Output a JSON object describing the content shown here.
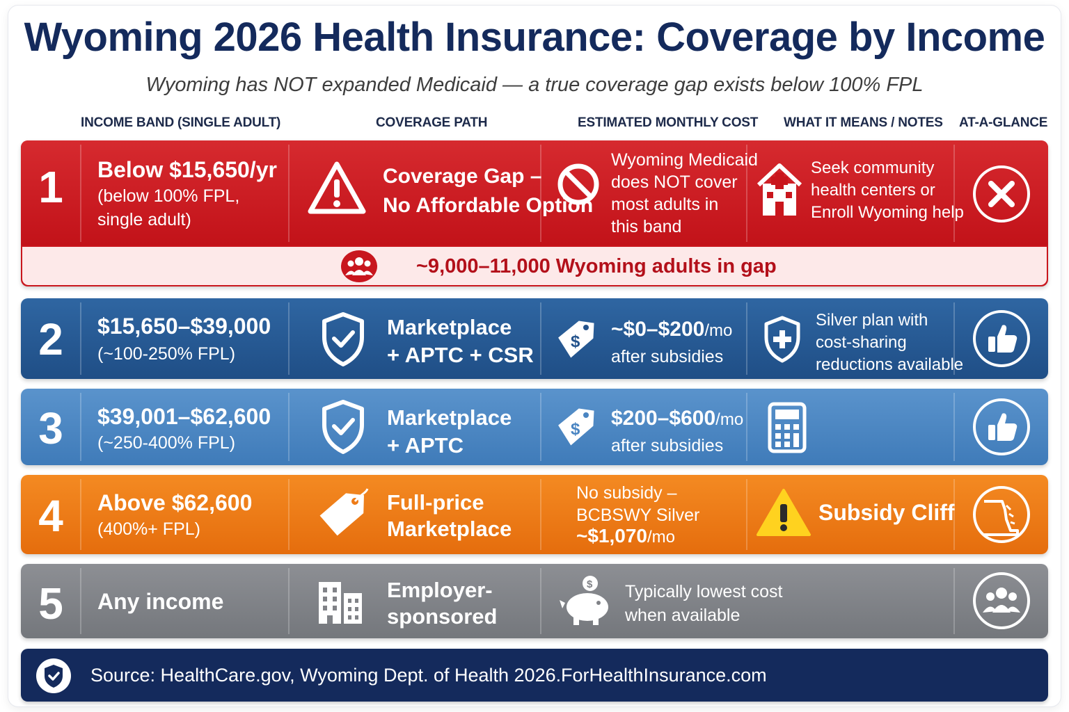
{
  "header": {
    "title": "Wyoming 2026 Health Insurance: Coverage by Income",
    "subtitle": "Wyoming has NOT expanded Medicaid — a true coverage gap exists below 100% FPL"
  },
  "columns": {
    "income": "INCOME BAND (SINGLE ADULT)",
    "path": "COVERAGE PATH",
    "cost": "ESTIMATED MONTHLY COST",
    "notes": "WHAT IT MEANS / NOTES",
    "glance": "AT-A-GLANCE"
  },
  "rows": [
    {
      "number": "1",
      "income_main": "Below $15,650/yr",
      "income_sub_1": "(below 100% FPL,",
      "income_sub_2": "single adult)",
      "path_1": "Coverage Gap –",
      "path_2": "No Affordable Option",
      "cost_1": "Wyoming Medicaid",
      "cost_2": "does NOT cover",
      "cost_3": "most adults in",
      "cost_4": "this band",
      "note_1": "Seek community",
      "note_2": "health centers or",
      "note_3": "Enroll Wyoming help",
      "gap_callout": "~9,000–11,000 Wyoming adults in gap",
      "path_icon": "warning-triangle-icon",
      "cost_icon": "prohibited-icon",
      "note_icon": "hospital-icon",
      "glance_icon": "x-circle-icon",
      "color": "#c9161d"
    },
    {
      "number": "2",
      "income_main": "$15,650–$39,000",
      "income_sub_1": "(~100-250% FPL)",
      "path_1": "Marketplace",
      "path_2": "+ APTC + CSR",
      "cost_big": "~$0–$200",
      "cost_unit": "/mo",
      "cost_sub": "after subsidies",
      "note_1": "Silver plan with",
      "note_2": "cost-sharing",
      "note_3": "reductions available",
      "path_icon": "shield-check-icon",
      "cost_icon": "price-tag-dollar-icon",
      "note_icon": "shield-plus-icon",
      "glance_icon": "thumbs-up-icon",
      "color": "#24538c"
    },
    {
      "number": "3",
      "income_main": "$39,001–$62,600",
      "income_sub_1": "(~250-400% FPL)",
      "path_1": "Marketplace",
      "path_2": "+ APTC",
      "cost_big": "$200–$600",
      "cost_unit": "/mo",
      "cost_sub": "after subsidies",
      "path_icon": "shield-check-icon",
      "cost_icon": "price-tag-dollar-icon",
      "note_icon": "calculator-icon",
      "glance_icon": "thumbs-up-icon",
      "color": "#4a85c2"
    },
    {
      "number": "4",
      "income_main": "Above $62,600",
      "income_sub_1": "(400%+ FPL)",
      "path_1": "Full-price",
      "path_2": "Marketplace",
      "cost_1": "No subsidy –",
      "cost_2": "BCBSWY Silver",
      "cost_big": "~$1,070",
      "cost_unit": "/mo",
      "note_1": "Subsidy Cliff",
      "path_icon": "price-tag-icon",
      "note_icon": "warning-yellow-icon",
      "glance_icon": "cliff-drop-icon",
      "color": "#ee7b16"
    },
    {
      "number": "5",
      "income_main": "Any income",
      "path_1": "Employer-",
      "path_2": "sponsored",
      "cost_1": "Typically lowest cost",
      "cost_2": "when available",
      "path_icon": "office-building-icon",
      "cost_icon": "piggy-bank-icon",
      "glance_icon": "group-people-icon",
      "color": "#808287"
    }
  ],
  "footer": {
    "source": "Source: HealthCare.gov, Wyoming Dept. of Health 2026.",
    "site": "ForHealthInsurance.com",
    "icon": "shield-check-icon"
  }
}
